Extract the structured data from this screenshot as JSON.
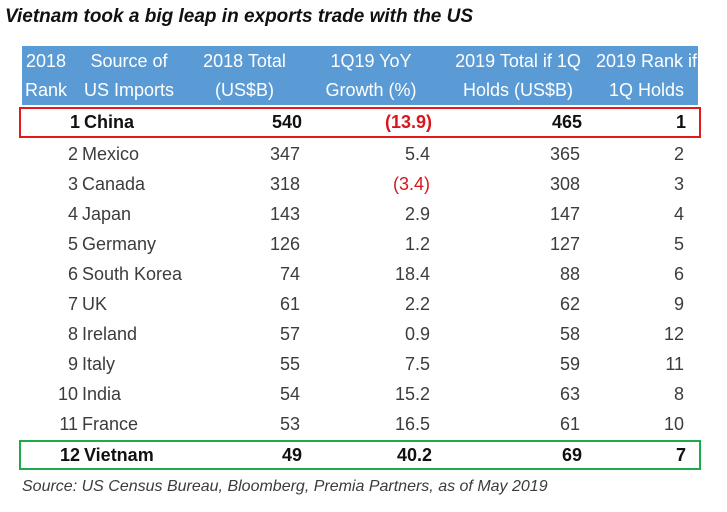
{
  "title": "Vietnam took a big leap in exports trade with the US",
  "header": {
    "rank_2018": [
      "2018",
      "Rank"
    ],
    "source": [
      "Source of",
      "US Imports"
    ],
    "total_2018": [
      "2018 Total",
      "(US$B)"
    ],
    "growth": [
      "1Q19 YoY",
      "Growth (%)"
    ],
    "total_2019": [
      "2019 Total if 1Q",
      "Holds (US$B)"
    ],
    "rank_2019": [
      "2019 Rank if",
      "1Q Holds"
    ]
  },
  "rows": [
    {
      "rank": "1",
      "country": "China",
      "total_2018": "540",
      "growth": "(13.9)",
      "total_2019": "465",
      "rank_2019": "1"
    },
    {
      "rank": "2",
      "country": "Mexico",
      "total_2018": "347",
      "growth": "5.4",
      "total_2019": "365",
      "rank_2019": "2"
    },
    {
      "rank": "3",
      "country": "Canada",
      "total_2018": "318",
      "growth": "(3.4)",
      "total_2019": "308",
      "rank_2019": "3"
    },
    {
      "rank": "4",
      "country": "Japan",
      "total_2018": "143",
      "growth": "2.9",
      "total_2019": "147",
      "rank_2019": "4"
    },
    {
      "rank": "5",
      "country": "Germany",
      "total_2018": "126",
      "growth": "1.2",
      "total_2019": "127",
      "rank_2019": "5"
    },
    {
      "rank": "6",
      "country": "South Korea",
      "total_2018": "74",
      "growth": "18.4",
      "total_2019": "88",
      "rank_2019": "6"
    },
    {
      "rank": "7",
      "country": "UK",
      "total_2018": "61",
      "growth": "2.2",
      "total_2019": "62",
      "rank_2019": "9"
    },
    {
      "rank": "8",
      "country": "Ireland",
      "total_2018": "57",
      "growth": "0.9",
      "total_2019": "58",
      "rank_2019": "12"
    },
    {
      "rank": "9",
      "country": "Italy",
      "total_2018": "55",
      "growth": "7.5",
      "total_2019": "59",
      "rank_2019": "11"
    },
    {
      "rank": "10",
      "country": "India",
      "total_2018": "54",
      "growth": "15.2",
      "total_2019": "63",
      "rank_2019": "8"
    },
    {
      "rank": "11",
      "country": "France",
      "total_2018": "53",
      "growth": "16.5",
      "total_2019": "61",
      "rank_2019": "10"
    },
    {
      "rank": "12",
      "country": "Vietnam",
      "total_2018": "49",
      "growth": "40.2",
      "total_2019": "69",
      "rank_2019": "7"
    }
  ],
  "source": "Source: US Census Bureau, Bloomberg, Premia Partners, as of May 2019",
  "colors": {
    "header_bg": "#5b9bd5",
    "negative": "#d9161c",
    "highlight_red": "#e3191c",
    "highlight_green": "#1faa4b"
  }
}
